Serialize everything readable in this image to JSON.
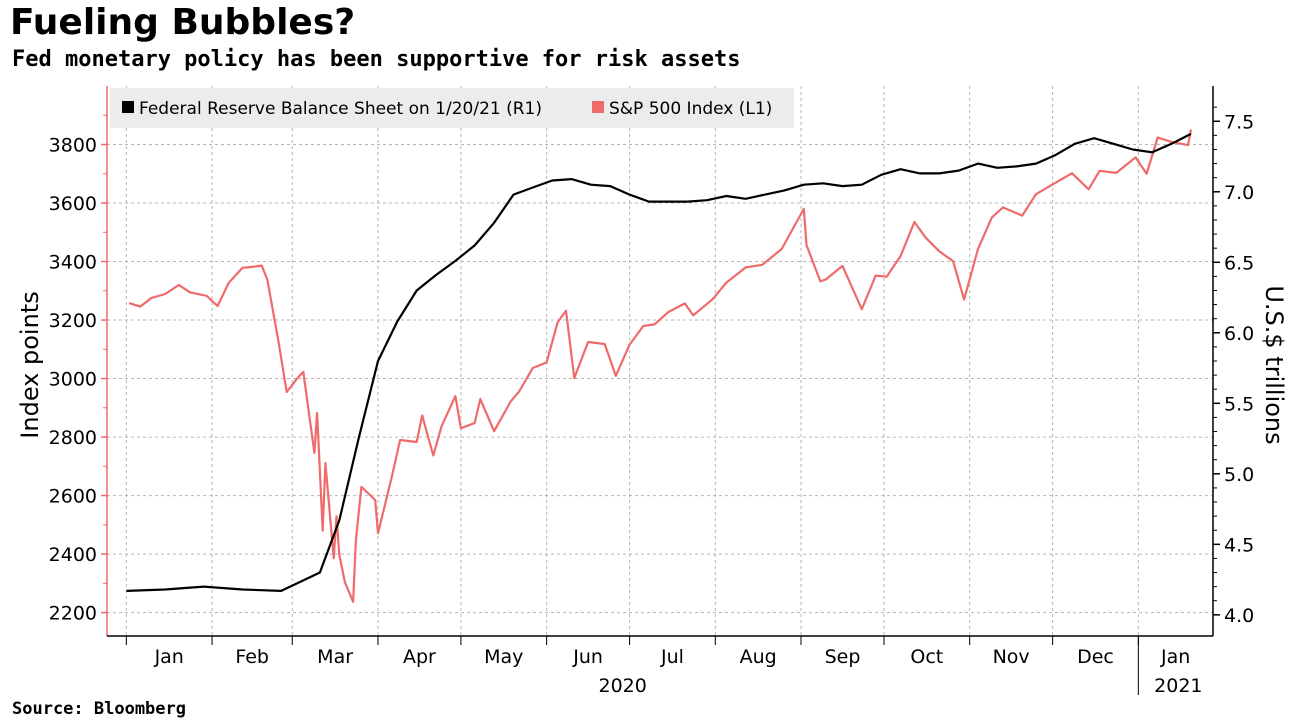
{
  "title": "Fueling Bubbles?",
  "subtitle": "Fed monetary policy has been supportive for risk assets",
  "source": "Source: Bloomberg",
  "colors": {
    "sp500": "#ef6b6b",
    "fed": "#000000",
    "grid": "#b5b5b5",
    "left_axis": "#ef6b6b",
    "legend_bg": "#ececec"
  },
  "chart_data": {
    "type": "line",
    "title": "Fueling Bubbles?",
    "subtitle": "Fed monetary policy has been supportive for risk assets",
    "ylabel_left": "Index points",
    "ylabel_right": "U.S.$ trillions",
    "ylim_left": [
      2120,
      4000
    ],
    "ylim_right": [
      3.85,
      7.75
    ],
    "yticks_left": [
      "2200",
      "2400",
      "2600",
      "2800",
      "3000",
      "3200",
      "3400",
      "3600",
      "3800"
    ],
    "yticks_right": [
      "4.0",
      "4.5",
      "5.0",
      "5.5",
      "6.0",
      "6.5",
      "7.0",
      "7.5"
    ],
    "x_month_labels": [
      "Jan",
      "Feb",
      "Mar",
      "Apr",
      "May",
      "Jun",
      "Jul",
      "Aug",
      "Sep",
      "Oct",
      "Nov",
      "Dec",
      "Jan"
    ],
    "x_year_labels": [
      "2020",
      "2021"
    ],
    "grid": true,
    "legend_position": "top-left",
    "series": [
      {
        "name": "Federal Reserve Balance Sheet on 1/20/21 (R1)",
        "axis": "right",
        "x": [
          "2020-01-01",
          "2020-01-15",
          "2020-01-29",
          "2020-02-12",
          "2020-02-26",
          "2020-03-11",
          "2020-03-18",
          "2020-03-25",
          "2020-04-01",
          "2020-04-08",
          "2020-04-15",
          "2020-04-22",
          "2020-04-29",
          "2020-05-06",
          "2020-05-13",
          "2020-05-20",
          "2020-05-27",
          "2020-06-03",
          "2020-06-10",
          "2020-06-17",
          "2020-06-24",
          "2020-07-01",
          "2020-07-08",
          "2020-07-15",
          "2020-07-22",
          "2020-07-29",
          "2020-08-05",
          "2020-08-12",
          "2020-08-19",
          "2020-08-26",
          "2020-09-02",
          "2020-09-09",
          "2020-09-16",
          "2020-09-23",
          "2020-09-30",
          "2020-10-07",
          "2020-10-14",
          "2020-10-21",
          "2020-10-28",
          "2020-11-04",
          "2020-11-11",
          "2020-11-18",
          "2020-11-25",
          "2020-12-02",
          "2020-12-09",
          "2020-12-16",
          "2020-12-23",
          "2020-12-30",
          "2021-01-06",
          "2021-01-13",
          "2021-01-20"
        ],
        "values": [
          4.17,
          4.18,
          4.2,
          4.18,
          4.17,
          4.3,
          4.67,
          5.25,
          5.8,
          6.08,
          6.3,
          6.41,
          6.51,
          6.62,
          6.78,
          6.98,
          7.03,
          7.08,
          7.09,
          7.05,
          7.04,
          6.98,
          6.93,
          6.93,
          6.93,
          6.94,
          6.97,
          6.95,
          6.98,
          7.01,
          7.05,
          7.06,
          7.04,
          7.05,
          7.12,
          7.16,
          7.13,
          7.13,
          7.15,
          7.2,
          7.17,
          7.18,
          7.2,
          7.26,
          7.34,
          7.38,
          7.34,
          7.3,
          7.28,
          7.34,
          7.41
        ]
      },
      {
        "name": "S&P 500 Index (L1)",
        "axis": "left",
        "x": [
          "2020-01-02",
          "2020-01-06",
          "2020-01-10",
          "2020-01-15",
          "2020-01-20",
          "2020-01-24",
          "2020-01-30",
          "2020-02-03",
          "2020-02-07",
          "2020-02-12",
          "2020-02-14",
          "2020-02-19",
          "2020-02-21",
          "2020-02-25",
          "2020-02-28",
          "2020-03-03",
          "2020-03-05",
          "2020-03-09",
          "2020-03-10",
          "2020-03-12",
          "2020-03-13",
          "2020-03-16",
          "2020-03-17",
          "2020-03-18",
          "2020-03-20",
          "2020-03-23",
          "2020-03-24",
          "2020-03-26",
          "2020-03-31",
          "2020-04-01",
          "2020-04-06",
          "2020-04-09",
          "2020-04-15",
          "2020-04-17",
          "2020-04-21",
          "2020-04-24",
          "2020-04-29",
          "2020-05-01",
          "2020-05-06",
          "2020-05-08",
          "2020-05-13",
          "2020-05-19",
          "2020-05-22",
          "2020-05-27",
          "2020-06-01",
          "2020-06-05",
          "2020-06-08",
          "2020-06-11",
          "2020-06-16",
          "2020-06-22",
          "2020-06-26",
          "2020-07-01",
          "2020-07-06",
          "2020-07-10",
          "2020-07-15",
          "2020-07-21",
          "2020-07-24",
          "2020-07-31",
          "2020-08-05",
          "2020-08-12",
          "2020-08-18",
          "2020-08-25",
          "2020-09-02",
          "2020-09-03",
          "2020-09-08",
          "2020-09-10",
          "2020-09-16",
          "2020-09-23",
          "2020-09-28",
          "2020-10-02",
          "2020-10-07",
          "2020-10-12",
          "2020-10-16",
          "2020-10-21",
          "2020-10-26",
          "2020-10-30",
          "2020-11-04",
          "2020-11-09",
          "2020-11-13",
          "2020-11-20",
          "2020-11-25",
          "2020-12-02",
          "2020-12-08",
          "2020-12-14",
          "2020-12-18",
          "2020-12-24",
          "2020-12-31",
          "2021-01-04",
          "2021-01-08",
          "2021-01-13",
          "2021-01-19",
          "2021-01-20"
        ],
        "values": [
          3258,
          3246,
          3275,
          3289,
          3320,
          3295,
          3283,
          3248,
          3327,
          3379,
          3380,
          3386,
          3337,
          3128,
          2954,
          3003,
          3023,
          2746,
          2882,
          2480,
          2711,
          2386,
          2529,
          2398,
          2305,
          2237,
          2447,
          2630,
          2585,
          2471,
          2664,
          2790,
          2783,
          2874,
          2737,
          2837,
          2940,
          2830,
          2848,
          2930,
          2820,
          2922,
          2955,
          3036,
          3055,
          3193,
          3232,
          3002,
          3125,
          3118,
          3009,
          3116,
          3180,
          3185,
          3227,
          3257,
          3216,
          3271,
          3328,
          3380,
          3389,
          3443,
          3580,
          3456,
          3332,
          3339,
          3385,
          3237,
          3352,
          3348,
          3419,
          3535,
          3483,
          3435,
          3401,
          3270,
          3443,
          3550,
          3585,
          3557,
          3630,
          3669,
          3702,
          3647,
          3710,
          3703,
          3756,
          3700,
          3824,
          3809,
          3798,
          3851
        ]
      }
    ]
  }
}
